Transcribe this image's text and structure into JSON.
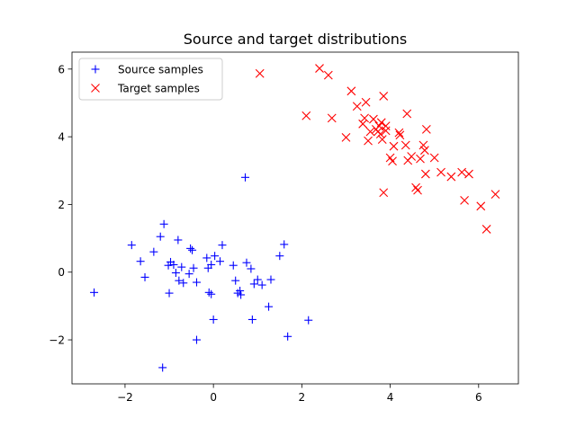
{
  "chart_data": {
    "type": "scatter",
    "title": "Source and target distributions",
    "xlabel": "",
    "ylabel": "",
    "xlim": [
      -3.2,
      6.9
    ],
    "ylim": [
      -3.3,
      6.5
    ],
    "xticks": [
      -2,
      0,
      2,
      4,
      6
    ],
    "yticks": [
      -2,
      0,
      2,
      4,
      6
    ],
    "grid": false,
    "legend_position": "top-left",
    "series": [
      {
        "name": "Source samples",
        "marker": "plus",
        "color": "#0000ff",
        "points": [
          [
            -2.7,
            -0.6
          ],
          [
            -1.85,
            0.8
          ],
          [
            -1.65,
            0.32
          ],
          [
            -1.55,
            -0.15
          ],
          [
            -1.35,
            0.6
          ],
          [
            -1.2,
            1.05
          ],
          [
            -1.12,
            1.42
          ],
          [
            -1.15,
            -2.82
          ],
          [
            -1.02,
            0.2
          ],
          [
            -1.0,
            -0.62
          ],
          [
            -0.97,
            0.3
          ],
          [
            -0.9,
            0.22
          ],
          [
            -0.85,
            -0.02
          ],
          [
            -0.8,
            0.95
          ],
          [
            -0.78,
            -0.25
          ],
          [
            -0.72,
            0.15
          ],
          [
            -0.68,
            -0.32
          ],
          [
            -0.55,
            -0.05
          ],
          [
            -0.52,
            0.7
          ],
          [
            -0.48,
            0.65
          ],
          [
            -0.45,
            0.12
          ],
          [
            -0.38,
            -0.3
          ],
          [
            -0.38,
            -2.0
          ],
          [
            -0.15,
            0.42
          ],
          [
            -0.12,
            0.12
          ],
          [
            -0.05,
            0.22
          ],
          [
            -0.1,
            -0.6
          ],
          [
            -0.05,
            -0.65
          ],
          [
            0.0,
            -1.4
          ],
          [
            0.03,
            0.48
          ],
          [
            0.15,
            0.32
          ],
          [
            0.2,
            0.8
          ],
          [
            0.45,
            0.2
          ],
          [
            0.5,
            -0.25
          ],
          [
            0.55,
            -0.62
          ],
          [
            0.6,
            -0.55
          ],
          [
            0.62,
            -0.67
          ],
          [
            0.72,
            2.8
          ],
          [
            0.75,
            0.28
          ],
          [
            0.85,
            0.1
          ],
          [
            0.88,
            -1.4
          ],
          [
            0.92,
            -0.35
          ],
          [
            1.0,
            -0.22
          ],
          [
            1.1,
            -0.38
          ],
          [
            1.25,
            -1.02
          ],
          [
            1.3,
            -0.22
          ],
          [
            1.5,
            0.48
          ],
          [
            1.6,
            0.82
          ],
          [
            1.68,
            -1.9
          ],
          [
            2.15,
            -1.42
          ]
        ]
      },
      {
        "name": "Target samples",
        "marker": "x",
        "color": "#ff0000",
        "points": [
          [
            1.05,
            5.87
          ],
          [
            2.1,
            4.62
          ],
          [
            2.4,
            6.02
          ],
          [
            2.6,
            5.82
          ],
          [
            2.68,
            4.55
          ],
          [
            3.0,
            3.98
          ],
          [
            3.12,
            5.35
          ],
          [
            3.25,
            4.9
          ],
          [
            3.38,
            4.38
          ],
          [
            3.42,
            4.55
          ],
          [
            3.45,
            5.02
          ],
          [
            3.5,
            3.88
          ],
          [
            3.55,
            4.15
          ],
          [
            3.62,
            4.52
          ],
          [
            3.68,
            4.22
          ],
          [
            3.72,
            4.15
          ],
          [
            3.75,
            4.32
          ],
          [
            3.78,
            4.08
          ],
          [
            3.8,
            4.42
          ],
          [
            3.82,
            3.92
          ],
          [
            3.85,
            5.2
          ],
          [
            3.85,
            2.35
          ],
          [
            3.9,
            4.32
          ],
          [
            3.9,
            4.18
          ],
          [
            4.0,
            3.38
          ],
          [
            4.05,
            3.28
          ],
          [
            4.08,
            3.72
          ],
          [
            4.2,
            4.12
          ],
          [
            4.22,
            4.05
          ],
          [
            4.35,
            3.75
          ],
          [
            4.38,
            4.68
          ],
          [
            4.4,
            3.3
          ],
          [
            4.48,
            3.42
          ],
          [
            4.58,
            2.5
          ],
          [
            4.62,
            2.42
          ],
          [
            4.68,
            3.35
          ],
          [
            4.75,
            3.75
          ],
          [
            4.78,
            3.6
          ],
          [
            4.8,
            2.9
          ],
          [
            4.82,
            4.22
          ],
          [
            5.0,
            3.38
          ],
          [
            5.15,
            2.95
          ],
          [
            5.38,
            2.82
          ],
          [
            5.62,
            2.95
          ],
          [
            5.68,
            2.12
          ],
          [
            5.78,
            2.9
          ],
          [
            6.05,
            1.95
          ],
          [
            6.18,
            1.27
          ],
          [
            6.38,
            2.3
          ]
        ]
      }
    ]
  }
}
